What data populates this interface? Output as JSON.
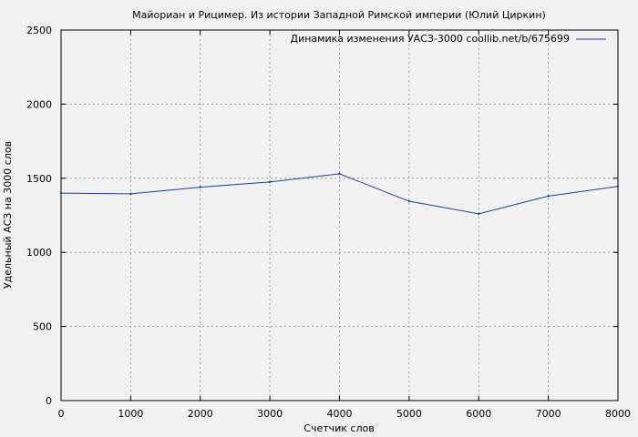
{
  "chart_data": {
    "type": "line",
    "title": "Майориан и Рицимер. Из истории Западной Римской империи (Юлий Циркин)",
    "xlabel": "Счетчик слов",
    "ylabel": "Удельный АСЗ на 3000 слов",
    "xlim": [
      0,
      8000
    ],
    "ylim": [
      0,
      2500
    ],
    "xticks": [
      0,
      1000,
      2000,
      3000,
      4000,
      5000,
      6000,
      7000,
      8000
    ],
    "yticks": [
      0,
      500,
      1000,
      1500,
      2000,
      2500
    ],
    "grid": true,
    "legend_position": "top-right",
    "series": [
      {
        "name": "Динамика изменения УАСЗ-3000 coollib.net/b/675699",
        "color": "#1f3f8f",
        "x": [
          0,
          1000,
          2000,
          3000,
          4000,
          5000,
          6000,
          7000,
          8000
        ],
        "y": [
          1400,
          1395,
          1440,
          1475,
          1530,
          1345,
          1260,
          1380,
          1445
        ]
      }
    ]
  }
}
